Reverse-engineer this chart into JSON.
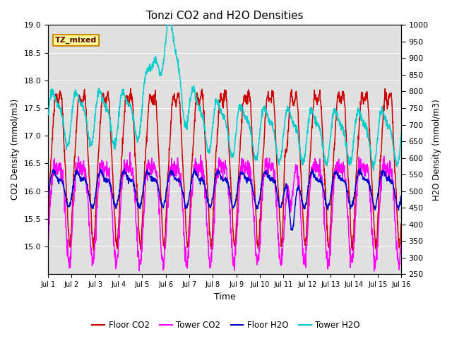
{
  "title": "Tonzi CO2 and H2O Densities",
  "xlabel": "Time",
  "ylabel_left": "CO2 Density (mmol/m3)",
  "ylabel_right": "H2O Density (mmol/m3)",
  "ylim_left": [
    14.5,
    19.0
  ],
  "ylim_right": [
    250,
    1000
  ],
  "yticks_left": [
    15.0,
    15.5,
    16.0,
    16.5,
    17.0,
    17.5,
    18.0,
    18.5,
    19.0
  ],
  "yticks_right": [
    250,
    300,
    350,
    400,
    450,
    500,
    550,
    600,
    650,
    700,
    750,
    800,
    850,
    900,
    950,
    1000
  ],
  "xtick_labels": [
    "Jul 1",
    "Jul 2",
    "Jul 3",
    "Jul 4",
    "Jul 5",
    "Jul 6",
    "Jul 7",
    "Jul 8",
    "Jul 9",
    "Jul 10",
    "Jul 11",
    "Jul 12",
    "Jul 13",
    "Jul 14",
    "Jul 15",
    "Jul 16"
  ],
  "annotation_text": "TZ_mixed",
  "colors": {
    "floor_co2": "#cc0000",
    "tower_co2": "#ff00ff",
    "floor_h2o": "#0000cc",
    "tower_h2o": "#00cccc"
  },
  "legend_labels": [
    "Floor CO2",
    "Tower CO2",
    "Floor H2O",
    "Tower H2O"
  ],
  "background_color": "#e0e0e0",
  "fig_background": "#ffffff",
  "grid_color": "#ffffff",
  "n_points": 1500
}
